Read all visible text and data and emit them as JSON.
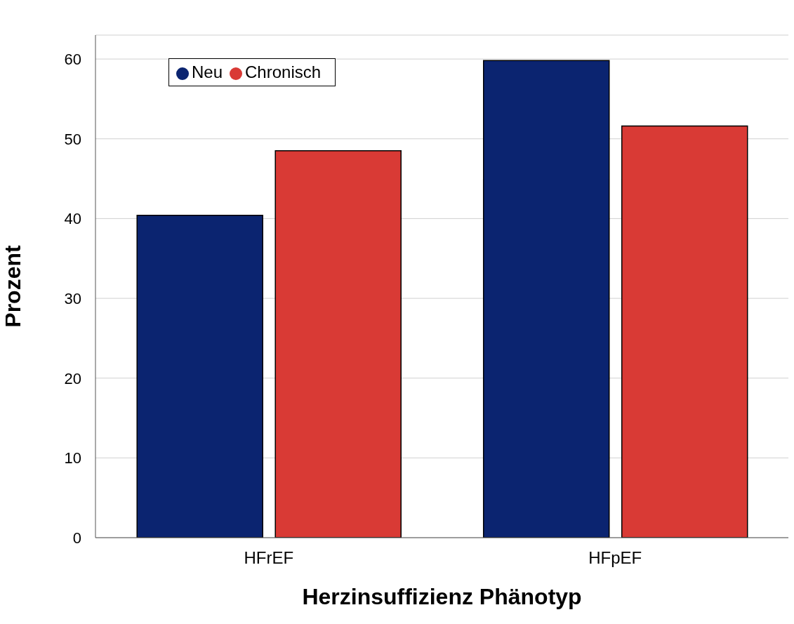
{
  "chart_data": {
    "type": "bar",
    "xlabel": "Herzinsuffizienz Phänotyp",
    "ylabel": "Prozent",
    "categories": [
      "HFrEF",
      "HFpEF"
    ],
    "series": [
      {
        "name": "Neu",
        "color": "#0b2470",
        "values": [
          40.4,
          59.8
        ]
      },
      {
        "name": "Chronisch",
        "color": "#d93a35",
        "values": [
          48.5,
          51.6
        ]
      }
    ],
    "ylim": [
      0,
      63
    ],
    "yticks": [
      0,
      10,
      20,
      30,
      40,
      50,
      60
    ],
    "grid": "y",
    "legend": "top left"
  }
}
